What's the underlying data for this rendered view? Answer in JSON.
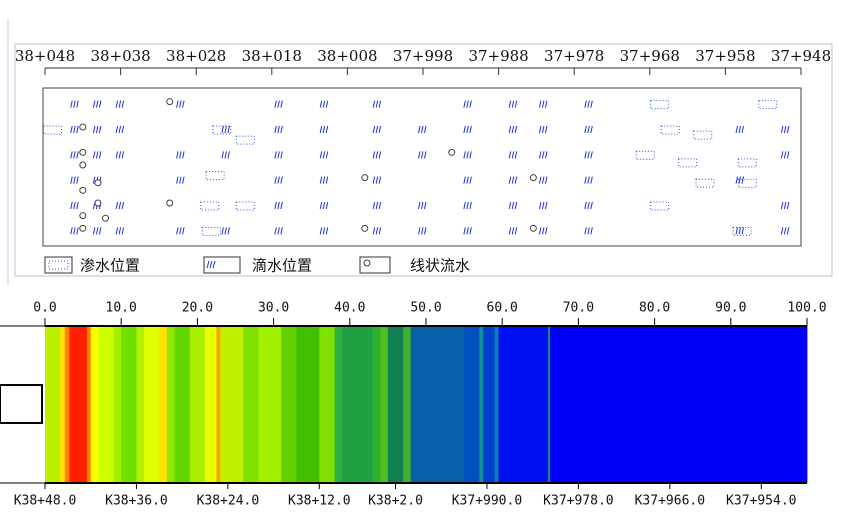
{
  "chart_data": [
    {
      "type": "station-map",
      "xlim": [
        38048,
        37948
      ],
      "xticks": [
        {
          "value": 38048,
          "label": "38+048"
        },
        {
          "value": 38038,
          "label": "38+038"
        },
        {
          "value": 38028,
          "label": "38+028"
        },
        {
          "value": 38018,
          "label": "38+018"
        },
        {
          "value": 38008,
          "label": "38+008"
        },
        {
          "value": 37998,
          "label": "37+998"
        },
        {
          "value": 37988,
          "label": "37+988"
        },
        {
          "value": 37978,
          "label": "37+978"
        },
        {
          "value": 37968,
          "label": "37+968"
        },
        {
          "value": 37958,
          "label": "37+958"
        },
        {
          "value": 37948,
          "label": "37+948"
        }
      ],
      "ylim": [
        0.5,
        6.5
      ],
      "series": [
        {
          "name": "渗水位置",
          "color": "#3050d0",
          "marker": "seep",
          "x": [
            38047,
            38024.6,
            38021.5,
            38025.5,
            38026.2,
            38021.5,
            38026,
            37966.7,
            37965.3,
            37961,
            37968.6,
            37963,
            37960.7,
            37955.1,
            37955.1,
            37952.4,
            37966.7,
            37955.8
          ],
          "values": [
            2,
            2,
            2.4,
            3.8,
            5,
            5,
            6,
            1,
            2,
            2.2,
            3,
            3.3,
            4.1,
            4.1,
            3.3,
            1,
            5,
            6
          ]
        },
        {
          "name": "滴水位置",
          "color": "#2030e0",
          "marker": "drip",
          "x": [
            38044,
            38044,
            38044,
            38044,
            38044,
            38044,
            38041,
            38041,
            38041,
            38041,
            38041,
            38041,
            38038,
            38038,
            38038,
            38038,
            38038,
            38030,
            38030,
            38030,
            38030,
            38024,
            38024,
            38024,
            38017,
            38017,
            38017,
            38017,
            38017,
            38017,
            38011,
            38011,
            38011,
            38011,
            38011,
            38011,
            38004,
            38004,
            38004,
            38004,
            38004,
            38004,
            37998,
            37998,
            37998,
            37998,
            37992,
            37992,
            37992,
            37992,
            37992,
            37992,
            37986,
            37986,
            37986,
            37986,
            37986,
            37986,
            37982,
            37982,
            37982,
            37982,
            37982,
            37982,
            37976,
            37976,
            37976,
            37976,
            37976,
            37976,
            37956,
            37956,
            37956,
            37950,
            37950,
            37950,
            37950
          ],
          "values": [
            1,
            2,
            3,
            4,
            5,
            6,
            1,
            2,
            3,
            4,
            5,
            6,
            1,
            2,
            3,
            5,
            6,
            1,
            3,
            4,
            6,
            2,
            3,
            6,
            1,
            2,
            3,
            4,
            5,
            6,
            1,
            2,
            3,
            4,
            5,
            6,
            1,
            2,
            3,
            4,
            5,
            6,
            2,
            3,
            5,
            6,
            1,
            2,
            3,
            4,
            5,
            6,
            1,
            2,
            3,
            4,
            5,
            6,
            1,
            2,
            3,
            4,
            5,
            6,
            1,
            2,
            3,
            4,
            5,
            6,
            2,
            4,
            6,
            2,
            3,
            5,
            6
          ]
        },
        {
          "name": "线状流水",
          "color": "#404040",
          "marker": "pin",
          "x": [
            38031.5,
            38031.5,
            38005.7,
            38005.7,
            37994.2,
            37983.4,
            37983.4,
            38043,
            38043,
            38043,
            38043,
            38043,
            38043,
            38041,
            38041,
            38040
          ],
          "values": [
            1,
            5,
            4,
            6,
            3,
            4,
            6,
            2,
            3,
            3.5,
            4.5,
            5.5,
            6,
            4.2,
            5,
            5.6
          ]
        }
      ]
    },
    {
      "type": "color-strip",
      "xlim": [
        0,
        100
      ],
      "xticks": [
        {
          "value": 0,
          "label": "0.0"
        },
        {
          "value": 10,
          "label": "10.0"
        },
        {
          "value": 20,
          "label": "20.0"
        },
        {
          "value": 30,
          "label": "30.0"
        },
        {
          "value": 40,
          "label": "40.0"
        },
        {
          "value": 50,
          "label": "50.0"
        },
        {
          "value": 60,
          "label": "60.0"
        },
        {
          "value": 70,
          "label": "70.0"
        },
        {
          "value": 80,
          "label": "80.0"
        },
        {
          "value": 90,
          "label": "90.0"
        },
        {
          "value": 100,
          "label": "100.0"
        }
      ],
      "x2ticks": [
        {
          "value": 0,
          "label": "K38+48.0"
        },
        {
          "value": 12,
          "label": "K38+36.0"
        },
        {
          "value": 24,
          "label": "K38+24.0"
        },
        {
          "value": 36,
          "label": "K38+12.0"
        },
        {
          "value": 46,
          "label": "K38+2.0"
        },
        {
          "value": 58,
          "label": "K37+990.0"
        },
        {
          "value": 70,
          "label": "K37+978.0"
        },
        {
          "value": 82,
          "label": "K37+966.0"
        },
        {
          "value": 94,
          "label": "K37+954.0"
        }
      ],
      "bands": [
        {
          "from": 0,
          "to": 2,
          "color": "#b8f000"
        },
        {
          "from": 2,
          "to": 2.6,
          "color": "#ffe000"
        },
        {
          "from": 2.6,
          "to": 3.2,
          "color": "#ff8000"
        },
        {
          "from": 3.2,
          "to": 5.5,
          "color": "#ff2000"
        },
        {
          "from": 5.5,
          "to": 6,
          "color": "#ff8000"
        },
        {
          "from": 6,
          "to": 7,
          "color": "#ffff00"
        },
        {
          "from": 7,
          "to": 9,
          "color": "#d0ff00"
        },
        {
          "from": 9,
          "to": 10,
          "color": "#a0f000"
        },
        {
          "from": 10,
          "to": 12,
          "color": "#70e000"
        },
        {
          "from": 12,
          "to": 13,
          "color": "#b0f000"
        },
        {
          "from": 13,
          "to": 15,
          "color": "#e0ff00"
        },
        {
          "from": 15,
          "to": 16,
          "color": "#ffe000"
        },
        {
          "from": 16,
          "to": 17,
          "color": "#90e800"
        },
        {
          "from": 17,
          "to": 19,
          "color": "#60d800"
        },
        {
          "from": 19,
          "to": 21,
          "color": "#a8f000"
        },
        {
          "from": 21,
          "to": 22.5,
          "color": "#e8ff00"
        },
        {
          "from": 22.5,
          "to": 23,
          "color": "#ffa000"
        },
        {
          "from": 23,
          "to": 26,
          "color": "#c0f000"
        },
        {
          "from": 26,
          "to": 28,
          "color": "#80e000"
        },
        {
          "from": 28,
          "to": 31,
          "color": "#a0f000"
        },
        {
          "from": 31,
          "to": 33,
          "color": "#60d000"
        },
        {
          "from": 33,
          "to": 36,
          "color": "#40c000"
        },
        {
          "from": 36,
          "to": 38,
          "color": "#80e000"
        },
        {
          "from": 38,
          "to": 39,
          "color": "#30b040"
        },
        {
          "from": 39,
          "to": 43,
          "color": "#20a040"
        },
        {
          "from": 43,
          "to": 44,
          "color": "#30b030"
        },
        {
          "from": 44,
          "to": 45,
          "color": "#50c020"
        },
        {
          "from": 45,
          "to": 47,
          "color": "#108050"
        },
        {
          "from": 47,
          "to": 48,
          "color": "#40b030"
        },
        {
          "from": 48,
          "to": 55,
          "color": "#0860a8"
        },
        {
          "from": 55,
          "to": 57,
          "color": "#0050c0"
        },
        {
          "from": 57,
          "to": 57.5,
          "color": "#1090a0"
        },
        {
          "from": 57.5,
          "to": 59,
          "color": "#0040d0"
        },
        {
          "from": 59,
          "to": 59.5,
          "color": "#1080b0"
        },
        {
          "from": 59.5,
          "to": 66,
          "color": "#0010f0"
        },
        {
          "from": 66,
          "to": 66.3,
          "color": "#208080"
        },
        {
          "from": 66.3,
          "to": 100,
          "color": "#0000f8"
        }
      ]
    }
  ]
}
